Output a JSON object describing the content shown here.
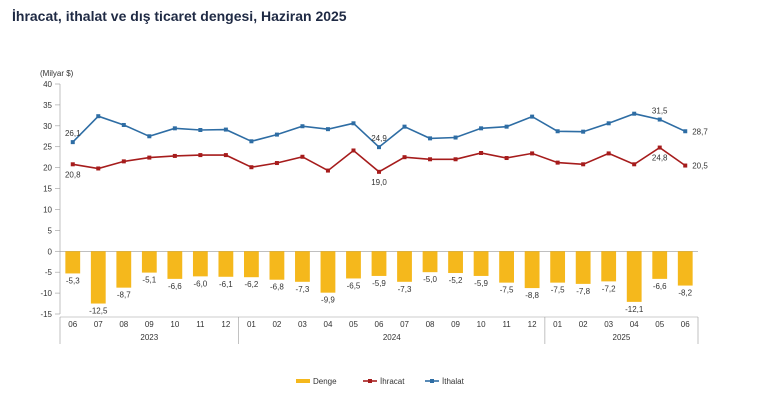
{
  "title": "İhracat, ithalat ve dış ticaret dengesi, Haziran 2025",
  "chart_data": {
    "type": "bar+line",
    "ylabel": "(Milyar $)",
    "ylim": [
      -15,
      40
    ],
    "yticks": [
      40,
      35,
      30,
      25,
      20,
      15,
      10,
      5,
      0,
      -5,
      -10,
      -15
    ],
    "grid": false,
    "legend_position": "bottom-center",
    "categories": [
      "06",
      "07",
      "08",
      "09",
      "10",
      "11",
      "12",
      "01",
      "02",
      "03",
      "04",
      "05",
      "06",
      "07",
      "08",
      "09",
      "10",
      "11",
      "12",
      "01",
      "02",
      "03",
      "04",
      "05",
      "06"
    ],
    "year_groups": [
      {
        "label": "2023",
        "start": 0,
        "end": 6
      },
      {
        "label": "2024",
        "start": 7,
        "end": 18
      },
      {
        "label": "2025",
        "start": 19,
        "end": 24
      }
    ],
    "series": [
      {
        "name": "Denge",
        "kind": "bar",
        "color": "#f5b81c",
        "values": [
          -5.3,
          -12.5,
          -8.7,
          -5.1,
          -6.6,
          -6.0,
          -6.1,
          -6.2,
          -6.8,
          -7.3,
          -9.9,
          -6.5,
          -5.9,
          -7.3,
          -5.0,
          -5.2,
          -5.9,
          -7.5,
          -8.8,
          -7.5,
          -7.8,
          -7.2,
          -12.1,
          -6.6,
          -8.2
        ],
        "labels": [
          "-5,3",
          "-12,5",
          "-8,7",
          "-5,1",
          "-6,6",
          "-6,0",
          "-6,1",
          "-6,2",
          "-6,8",
          "-7,3",
          "-9,9",
          "-6,5",
          "-5,9",
          "-7,3",
          "-5,0",
          "-5,2",
          "-5,9",
          "-7,5",
          "-8,8",
          "-7,5",
          "-7,8",
          "-7,2",
          "-12,1",
          "-6,6",
          "-8,2"
        ]
      },
      {
        "name": "İhracat",
        "kind": "line",
        "color": "#a61c1c",
        "values": [
          20.8,
          19.8,
          21.5,
          22.4,
          22.8,
          23.0,
          23.0,
          20.1,
          21.1,
          22.6,
          19.3,
          24.1,
          19.0,
          22.5,
          22.0,
          22.0,
          23.5,
          22.3,
          23.4,
          21.2,
          20.8,
          23.4,
          20.8,
          24.8,
          20.5
        ],
        "annotations": [
          {
            "index": 0,
            "text": "20,8",
            "pos": "below"
          },
          {
            "index": 12,
            "text": "19,0",
            "pos": "below"
          },
          {
            "index": 23,
            "text": "24,8",
            "pos": "below"
          },
          {
            "index": 24,
            "text": "20,5",
            "pos": "right"
          }
        ]
      },
      {
        "name": "İthalat",
        "kind": "line",
        "color": "#2e6da4",
        "values": [
          26.1,
          32.3,
          30.2,
          27.5,
          29.4,
          29.0,
          29.1,
          26.3,
          27.9,
          29.9,
          29.2,
          30.6,
          24.9,
          29.8,
          27.0,
          27.2,
          29.4,
          29.8,
          32.2,
          28.7,
          28.6,
          30.6,
          32.9,
          31.5,
          28.7
        ],
        "annotations": [
          {
            "index": 0,
            "text": "26,1",
            "pos": "above"
          },
          {
            "index": 12,
            "text": "24,9",
            "pos": "above"
          },
          {
            "index": 23,
            "text": "31,5",
            "pos": "above"
          },
          {
            "index": 24,
            "text": "28,7",
            "pos": "right"
          }
        ]
      }
    ]
  }
}
